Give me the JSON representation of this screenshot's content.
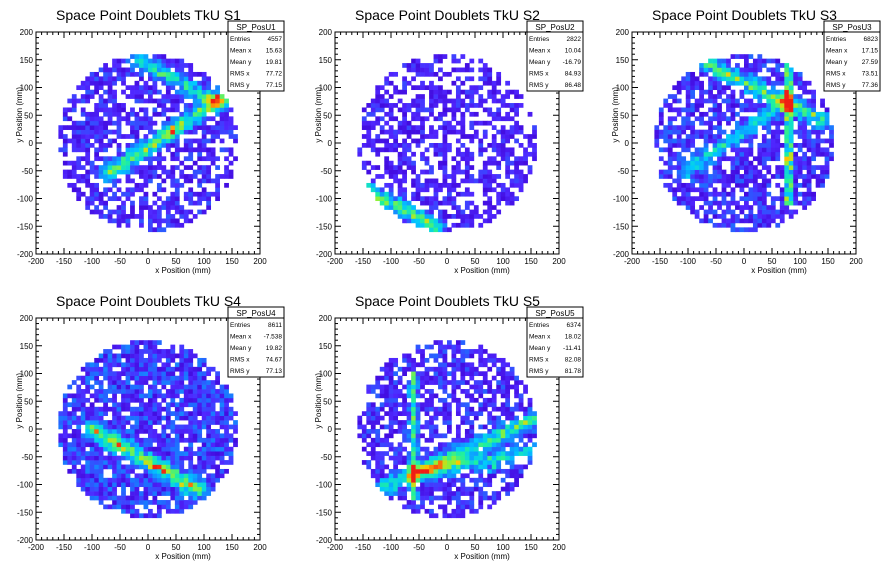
{
  "chart_data": [
    {
      "type": "heatmap",
      "title": "Space Point Doublets TkU S1",
      "xlabel": "x Position (mm)",
      "ylabel": "y Position (mm)",
      "xlim": [
        -200,
        200
      ],
      "ylim": [
        -200,
        200
      ],
      "xticks": [
        -200,
        -150,
        -100,
        -50,
        0,
        50,
        100,
        150,
        200
      ],
      "yticks": [
        -200,
        -150,
        -100,
        -50,
        0,
        50,
        100,
        150,
        200
      ],
      "stats": {
        "name": "SP_PosU1",
        "rows": [
          {
            "label": "Entries",
            "value": "4557"
          },
          {
            "label": "Mean x",
            "value": "15.63"
          },
          {
            "label": "Mean y",
            "value": "19.81"
          },
          {
            "label": "RMS x",
            "value": "77.72"
          },
          {
            "label": "RMS y",
            "value": "77.15"
          }
        ]
      },
      "bands": [
        {
          "x1": -70,
          "y1": -55,
          "x2": 150,
          "y2": 95,
          "intensity": 0.55
        },
        {
          "x1": -20,
          "y1": 150,
          "x2": 130,
          "y2": 70,
          "intensity": 0.45
        }
      ],
      "lines": [],
      "hotspots": [
        {
          "x": 40,
          "y": 20,
          "intensity": 0.6
        }
      ],
      "density": 0.45,
      "seed": 11
    },
    {
      "type": "heatmap",
      "title": "Space Point Doublets TkU S2",
      "xlabel": "x Position (mm)",
      "ylabel": "y Position (mm)",
      "xlim": [
        -200,
        200
      ],
      "ylim": [
        -200,
        200
      ],
      "xticks": [
        -200,
        -150,
        -100,
        -50,
        0,
        50,
        100,
        150,
        200
      ],
      "yticks": [
        -200,
        -150,
        -100,
        -50,
        0,
        50,
        100,
        150,
        200
      ],
      "stats": {
        "name": "SP_PosU2",
        "rows": [
          {
            "label": "Entries",
            "value": "2822"
          },
          {
            "label": "Mean x",
            "value": "10.04"
          },
          {
            "label": "Mean y",
            "value": "-16.79"
          },
          {
            "label": "RMS x",
            "value": "84.93"
          },
          {
            "label": "RMS y",
            "value": "86.48"
          }
        ]
      },
      "bands": [
        {
          "x1": -150,
          "y1": -80,
          "x2": -20,
          "y2": -150,
          "intensity": 0.55
        }
      ],
      "lines": [],
      "hotspots": [
        {
          "x": -120,
          "y": -110,
          "intensity": 0.8
        }
      ],
      "density": 0.3,
      "seed": 23
    },
    {
      "type": "heatmap",
      "title": "Space Point Doublets TkU S3",
      "xlabel": "x Position (mm)",
      "ylabel": "y Position (mm)",
      "xlim": [
        -200,
        200
      ],
      "ylim": [
        -200,
        200
      ],
      "xticks": [
        -200,
        -150,
        -100,
        -50,
        0,
        50,
        100,
        150,
        200
      ],
      "yticks": [
        -200,
        -150,
        -100,
        -50,
        0,
        50,
        100,
        150,
        200
      ],
      "stats": {
        "name": "SP_PosU3",
        "rows": [
          {
            "label": "Entries",
            "value": "6823"
          },
          {
            "label": "Mean x",
            "value": "17.15"
          },
          {
            "label": "Mean y",
            "value": "27.59"
          },
          {
            "label": "RMS x",
            "value": "73.51"
          },
          {
            "label": "RMS y",
            "value": "77.36"
          }
        ]
      },
      "bands": [
        {
          "x1": -60,
          "y1": 140,
          "x2": 140,
          "y2": 40,
          "intensity": 0.5
        },
        {
          "x1": -100,
          "y1": -50,
          "x2": 80,
          "y2": 80,
          "intensity": 0.35
        }
      ],
      "lines": [
        {
          "x": 80,
          "y1": -110,
          "y2": 150,
          "intensity": 0.65
        }
      ],
      "hotspots": [
        {
          "x": 80,
          "y": -30,
          "intensity": 0.9
        }
      ],
      "density": 0.6,
      "seed": 37
    },
    {
      "type": "heatmap",
      "title": "Space Point Doublets TkU S4",
      "xlabel": "x Position (mm)",
      "ylabel": "y Position (mm)",
      "xlim": [
        -200,
        200
      ],
      "ylim": [
        -200,
        200
      ],
      "xticks": [
        -200,
        -150,
        -100,
        -50,
        0,
        50,
        100,
        150,
        200
      ],
      "yticks": [
        -200,
        -150,
        -100,
        -50,
        0,
        50,
        100,
        150,
        200
      ],
      "stats": {
        "name": "SP_PosU4",
        "rows": [
          {
            "label": "Entries",
            "value": "8611"
          },
          {
            "label": "Mean x",
            "value": "-7.538"
          },
          {
            "label": "Mean y",
            "value": "19.82"
          },
          {
            "label": "RMS x",
            "value": "74.67"
          },
          {
            "label": "RMS y",
            "value": "77.13"
          }
        ]
      },
      "bands": [
        {
          "x1": -100,
          "y1": 0,
          "x2": 90,
          "y2": -110,
          "intensity": 0.6
        }
      ],
      "lines": [],
      "hotspots": [
        {
          "x": 20,
          "y": -65,
          "intensity": 0.75
        }
      ],
      "density": 0.8,
      "seed": 41
    },
    {
      "type": "heatmap",
      "title": "Space Point Doublets TkU S5",
      "xlabel": "x Position (mm)",
      "ylabel": "y Position (mm)",
      "xlim": [
        -200,
        200
      ],
      "ylim": [
        -200,
        200
      ],
      "xticks": [
        -200,
        -150,
        -100,
        -50,
        0,
        50,
        100,
        150,
        200
      ],
      "yticks": [
        -200,
        -150,
        -100,
        -50,
        0,
        50,
        100,
        150,
        200
      ],
      "stats": {
        "name": "SP_PosU5",
        "rows": [
          {
            "label": "Entries",
            "value": "6374"
          },
          {
            "label": "Mean x",
            "value": "18.02"
          },
          {
            "label": "Mean y",
            "value": "-11.41"
          },
          {
            "label": "RMS x",
            "value": "82.08"
          },
          {
            "label": "RMS y",
            "value": "81.78"
          }
        ]
      },
      "bands": [
        {
          "x1": -120,
          "y1": -110,
          "x2": 160,
          "y2": 20,
          "intensity": 0.5
        },
        {
          "x1": -60,
          "y1": -80,
          "x2": 150,
          "y2": -40,
          "intensity": 0.4
        }
      ],
      "lines": [
        {
          "x": -60,
          "y1": -130,
          "y2": 100,
          "intensity": 0.45
        }
      ],
      "hotspots": [
        {
          "x": 80,
          "y": -70,
          "intensity": 0.85
        }
      ],
      "density": 0.55,
      "seed": 53
    }
  ]
}
